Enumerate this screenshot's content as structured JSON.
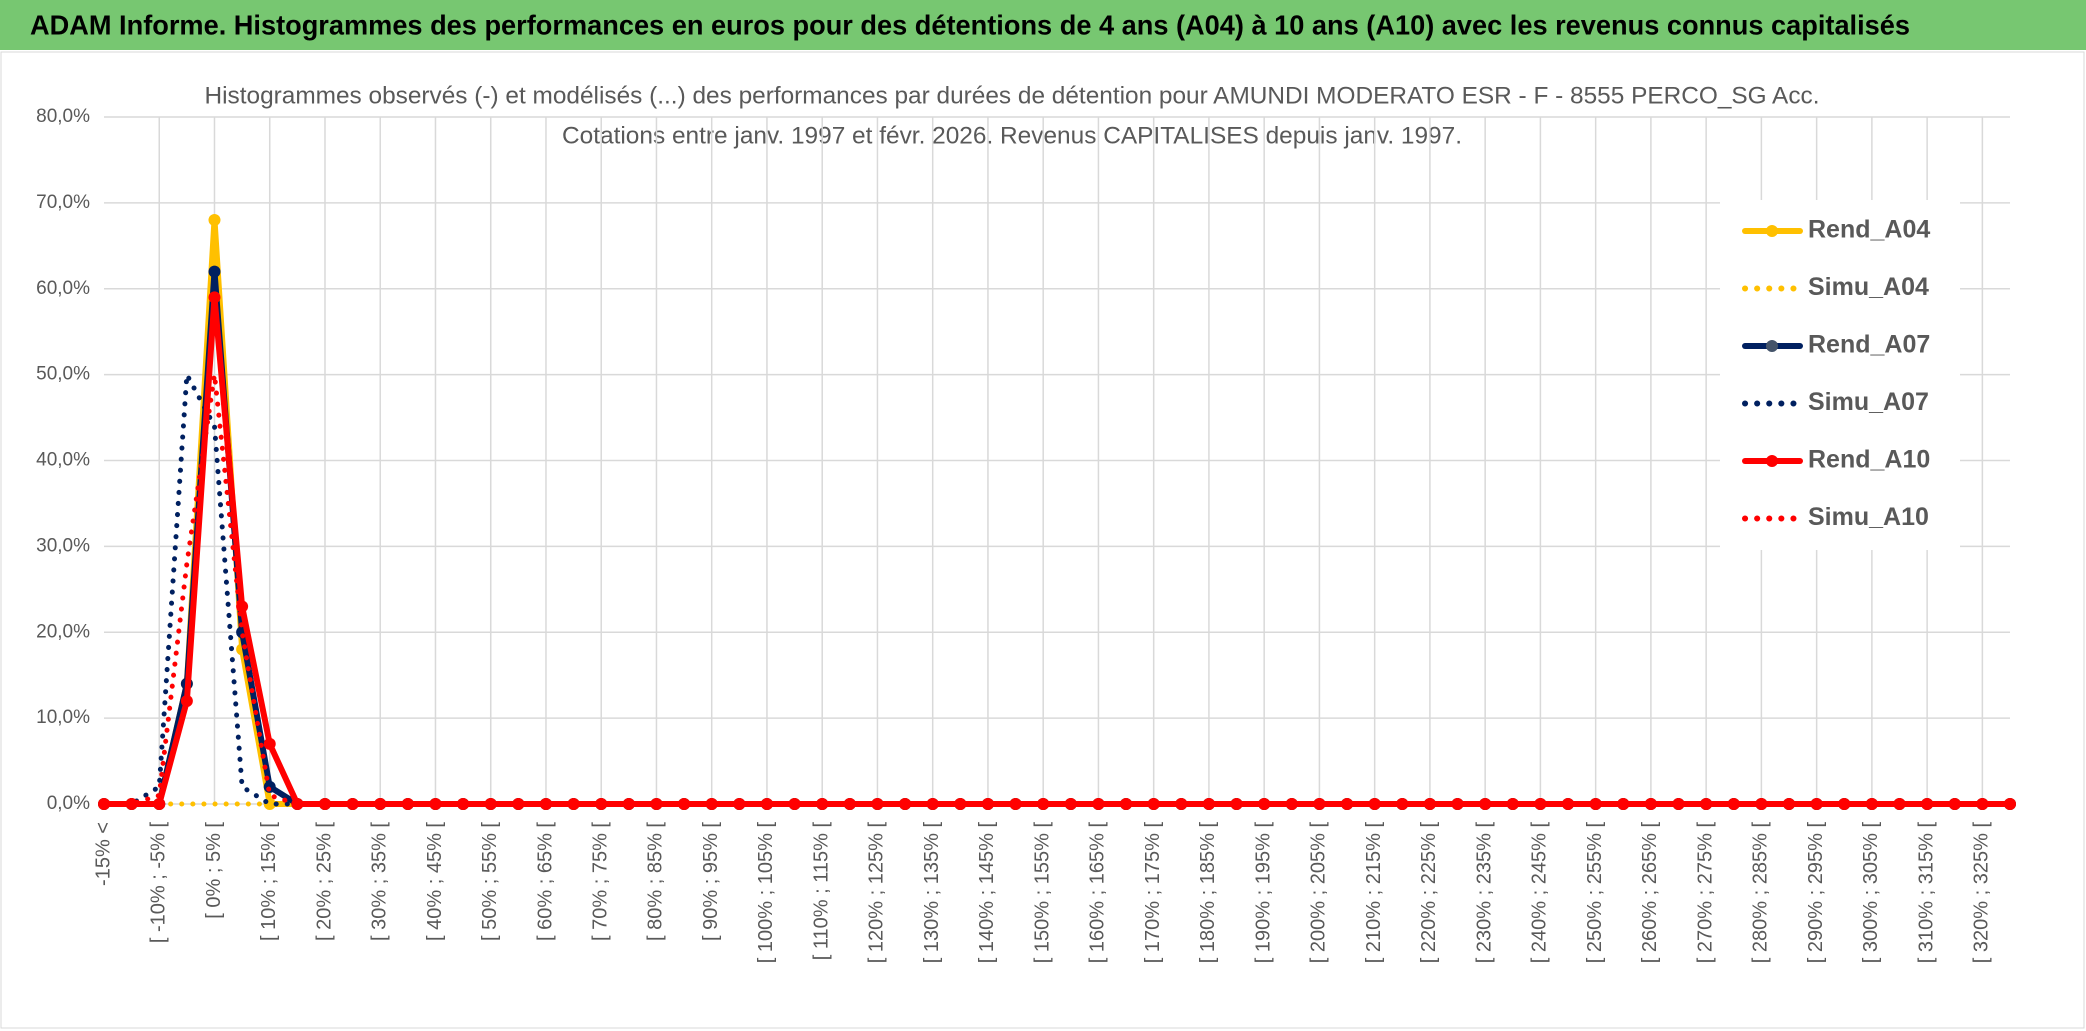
{
  "chart_data": {
    "type": "line",
    "banner": "ADAM Informe. Histogrammes des performances en euros pour des détentions de 4 ans (A04) à 10 ans (A10) avec les revenus connus capitalisés",
    "title": "Histogrammes observés (-) et modélisés (...) des performances par durées de détention pour AMUNDI MODERATO ESR - F - 8555 PERCO_SG Acc.",
    "subtitle": "Cotations entre janv. 1997 et févr. 2026. Revenus CAPITALISES depuis janv. 1997.",
    "categories": [
      "-15% <",
      null,
      "[ -10% ; -5% [",
      null,
      "[ 0% ; 5% [",
      null,
      "[ 10% ; 15% [",
      null,
      "[ 20% ; 25% [",
      null,
      "[ 30% ; 35% [",
      null,
      "[ 40% ; 45% [",
      null,
      "[ 50% ; 55% [",
      null,
      "[ 60% ; 65% [",
      null,
      "[ 70% ; 75% [",
      null,
      "[ 80% ; 85% [",
      null,
      "[ 90% ; 95% [",
      null,
      "[ 100% ; 105% [",
      null,
      "[ 110% ; 115% [",
      null,
      "[ 120% ; 125% [",
      null,
      "[ 130% ; 135% [",
      null,
      "[ 140% ; 145% [",
      null,
      "[ 150% ; 155% [",
      null,
      "[ 160% ; 165% [",
      null,
      "[ 170% ; 175% [",
      null,
      "[ 180% ; 185% [",
      null,
      "[ 190% ; 195% [",
      null,
      "[ 200% ; 205% [",
      null,
      "[ 210% ; 215% [",
      null,
      "[ 220% ; 225% [",
      null,
      "[ 230% ; 235% [",
      null,
      "[ 240% ; 245% [",
      null,
      "[ 250% ; 255% [",
      null,
      "[ 260% ; 265% [",
      null,
      "[ 270% ; 275% [",
      null,
      "[ 280% ; 285% [",
      null,
      "[ 290% ; 295% [",
      null,
      "[ 300% ; 305% [",
      null,
      "[ 310% ; 315% [",
      null,
      "[ 320% ; 325% [",
      null
    ],
    "series": [
      {
        "name": "Rend_A04",
        "color": "#ffc000",
        "line_style": "solid",
        "marker": true,
        "values": [
          0,
          0,
          0,
          14,
          68,
          18,
          0,
          0,
          0,
          0,
          0,
          0,
          0,
          0,
          0,
          0,
          0,
          0,
          0,
          0,
          0,
          0,
          0,
          0,
          0,
          0,
          0,
          0,
          0,
          0,
          0,
          0,
          0,
          0,
          0,
          0,
          0,
          0,
          0,
          0,
          0,
          0,
          0,
          0,
          0,
          0,
          0,
          0,
          0,
          0,
          0,
          0,
          0,
          0,
          0,
          0,
          0,
          0,
          0,
          0,
          0,
          0,
          0,
          0,
          0,
          0,
          0,
          0,
          0,
          0
        ]
      },
      {
        "name": "Simu_A04",
        "color": "#ffc000",
        "line_style": "dotted",
        "marker": false,
        "values": [
          0,
          0,
          0,
          0,
          0,
          0,
          0,
          0,
          0,
          0,
          0,
          0,
          0,
          0,
          0,
          0,
          0,
          0,
          0,
          0,
          0,
          0,
          0,
          0,
          0,
          0,
          0,
          0,
          0,
          0,
          0,
          0,
          0,
          0,
          0,
          0,
          0,
          0,
          0,
          0,
          0,
          0,
          0,
          0,
          0,
          0,
          0,
          0,
          0,
          0,
          0,
          0,
          0,
          0,
          0,
          0,
          0,
          0,
          0,
          0,
          0,
          0,
          0,
          0,
          0,
          0,
          0,
          0,
          0,
          0
        ]
      },
      {
        "name": "Rend_A07",
        "color": "#002060",
        "line_style": "solid",
        "marker": true,
        "values": [
          0,
          0,
          0,
          14,
          62,
          20,
          2,
          0,
          0,
          0,
          0,
          0,
          0,
          0,
          0,
          0,
          0,
          0,
          0,
          0,
          0,
          0,
          0,
          0,
          0,
          0,
          0,
          0,
          0,
          0,
          0,
          0,
          0,
          0,
          0,
          0,
          0,
          0,
          0,
          0,
          0,
          0,
          0,
          0,
          0,
          0,
          0,
          0,
          0,
          0,
          0,
          0,
          0,
          0,
          0,
          0,
          0,
          0,
          0,
          0,
          0,
          0,
          0,
          0,
          0,
          0,
          0,
          0,
          0,
          0
        ]
      },
      {
        "name": "Simu_A07",
        "color": "#002060",
        "line_style": "dotted",
        "marker": false,
        "values": [
          0,
          0,
          2,
          50,
          44,
          2,
          0,
          0,
          0,
          0,
          0,
          0,
          0,
          0,
          0,
          0,
          0,
          0,
          0,
          0,
          0,
          0,
          0,
          0,
          0,
          0,
          0,
          0,
          0,
          0,
          0,
          0,
          0,
          0,
          0,
          0,
          0,
          0,
          0,
          0,
          0,
          0,
          0,
          0,
          0,
          0,
          0,
          0,
          0,
          0,
          0,
          0,
          0,
          0,
          0,
          0,
          0,
          0,
          0,
          0,
          0,
          0,
          0,
          0,
          0,
          0,
          0,
          0,
          0,
          0
        ]
      },
      {
        "name": "Rend_A10",
        "color": "#ff0000",
        "line_style": "solid",
        "marker": true,
        "values": [
          0,
          0,
          0,
          12,
          59,
          23,
          7,
          0,
          0,
          0,
          0,
          0,
          0,
          0,
          0,
          0,
          0,
          0,
          0,
          0,
          0,
          0,
          0,
          0,
          0,
          0,
          0,
          0,
          0,
          0,
          0,
          0,
          0,
          0,
          0,
          0,
          0,
          0,
          0,
          0,
          0,
          0,
          0,
          0,
          0,
          0,
          0,
          0,
          0,
          0,
          0,
          0,
          0,
          0,
          0,
          0,
          0,
          0,
          0,
          0,
          0,
          0,
          0,
          0,
          0,
          0,
          0,
          0,
          0,
          0
        ]
      },
      {
        "name": "Simu_A10",
        "color": "#ff0000",
        "line_style": "dotted",
        "marker": false,
        "values": [
          0,
          0,
          1,
          28,
          50,
          20,
          1,
          0,
          0,
          0,
          0,
          0,
          0,
          0,
          0,
          0,
          0,
          0,
          0,
          0,
          0,
          0,
          0,
          0,
          0,
          0,
          0,
          0,
          0,
          0,
          0,
          0,
          0,
          0,
          0,
          0,
          0,
          0,
          0,
          0,
          0,
          0,
          0,
          0,
          0,
          0,
          0,
          0,
          0,
          0,
          0,
          0,
          0,
          0,
          0,
          0,
          0,
          0,
          0,
          0,
          0,
          0,
          0,
          0,
          0,
          0,
          0,
          0,
          0,
          0
        ]
      }
    ],
    "ylim": [
      0,
      80
    ],
    "yticks": [
      {
        "value": 0,
        "label": "0,0%"
      },
      {
        "value": 10,
        "label": "10,0%"
      },
      {
        "value": 20,
        "label": "20,0%"
      },
      {
        "value": 30,
        "label": "30,0%"
      },
      {
        "value": 40,
        "label": "40,0%"
      },
      {
        "value": 50,
        "label": "50,0%"
      },
      {
        "value": 60,
        "label": "60,0%"
      },
      {
        "value": 70,
        "label": "70,0%"
      },
      {
        "value": 80,
        "label": "80,0%"
      }
    ],
    "grid": true,
    "legend": "right"
  }
}
